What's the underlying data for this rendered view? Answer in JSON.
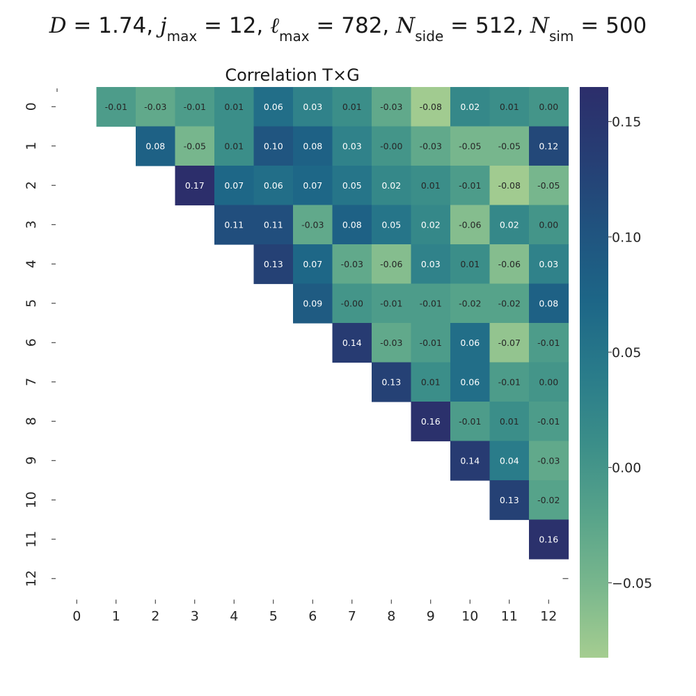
{
  "chart_data": {
    "type": "heatmap",
    "suptitle": {
      "D": "1.74",
      "j_max": "12",
      "ell_max": "782",
      "N_side": "512",
      "N_sim": "500"
    },
    "title": "Correlation T×G",
    "xlabel": "",
    "ylabel": "",
    "x_ticks": [
      "0",
      "1",
      "2",
      "3",
      "4",
      "5",
      "6",
      "7",
      "8",
      "9",
      "10",
      "11",
      "12"
    ],
    "y_ticks": [
      "0",
      "1",
      "2",
      "3",
      "4",
      "5",
      "6",
      "7",
      "8",
      "9",
      "10",
      "11",
      "12"
    ],
    "mask": "lower-triangle-including-diagonal (cells where column <= row are blank)",
    "values": [
      [
        null,
        -0.01,
        -0.03,
        -0.01,
        0.01,
        0.06,
        0.03,
        0.01,
        -0.03,
        -0.08,
        0.02,
        0.01,
        0.0
      ],
      [
        null,
        null,
        0.08,
        -0.05,
        0.01,
        0.1,
        0.08,
        0.03,
        -0.0,
        -0.03,
        -0.05,
        -0.05,
        0.12
      ],
      [
        null,
        null,
        null,
        0.17,
        0.07,
        0.06,
        0.07,
        0.05,
        0.02,
        0.01,
        -0.01,
        -0.08,
        -0.05
      ],
      [
        null,
        null,
        null,
        null,
        0.11,
        0.11,
        -0.03,
        0.08,
        0.05,
        0.02,
        -0.06,
        0.02,
        0.0
      ],
      [
        null,
        null,
        null,
        null,
        null,
        0.13,
        0.07,
        -0.03,
        -0.06,
        0.03,
        0.01,
        -0.06,
        0.03
      ],
      [
        null,
        null,
        null,
        null,
        null,
        null,
        0.09,
        -0.0,
        -0.01,
        -0.01,
        -0.02,
        -0.02,
        0.08
      ],
      [
        null,
        null,
        null,
        null,
        null,
        null,
        null,
        0.14,
        -0.03,
        -0.01,
        0.06,
        -0.07,
        -0.01
      ],
      [
        null,
        null,
        null,
        null,
        null,
        null,
        null,
        null,
        0.13,
        0.01,
        0.06,
        -0.01,
        0.0
      ],
      [
        null,
        null,
        null,
        null,
        null,
        null,
        null,
        null,
        null,
        0.16,
        -0.01,
        0.01,
        -0.01
      ],
      [
        null,
        null,
        null,
        null,
        null,
        null,
        null,
        null,
        null,
        null,
        0.14,
        0.04,
        -0.03
      ],
      [
        null,
        null,
        null,
        null,
        null,
        null,
        null,
        null,
        null,
        null,
        null,
        0.13,
        -0.02
      ],
      [
        null,
        null,
        null,
        null,
        null,
        null,
        null,
        null,
        null,
        null,
        null,
        null,
        0.16
      ],
      [
        null,
        null,
        null,
        null,
        null,
        null,
        null,
        null,
        null,
        null,
        null,
        null,
        null
      ]
    ],
    "value_labels": [
      [
        null,
        "-0.01",
        "-0.03",
        "-0.01",
        "0.01",
        "0.06",
        "0.03",
        "0.01",
        "-0.03",
        "-0.08",
        "0.02",
        "0.01",
        "0.00"
      ],
      [
        null,
        null,
        "0.08",
        "-0.05",
        "0.01",
        "0.10",
        "0.08",
        "0.03",
        "-0.00",
        "-0.03",
        "-0.05",
        "-0.05",
        "0.12"
      ],
      [
        null,
        null,
        null,
        "0.17",
        "0.07",
        "0.06",
        "0.07",
        "0.05",
        "0.02",
        "0.01",
        "-0.01",
        "-0.08",
        "-0.05"
      ],
      [
        null,
        null,
        null,
        null,
        "0.11",
        "0.11",
        "-0.03",
        "0.08",
        "0.05",
        "0.02",
        "-0.06",
        "0.02",
        "0.00"
      ],
      [
        null,
        null,
        null,
        null,
        null,
        "0.13",
        "0.07",
        "-0.03",
        "-0.06",
        "0.03",
        "0.01",
        "-0.06",
        "0.03"
      ],
      [
        null,
        null,
        null,
        null,
        null,
        null,
        "0.09",
        "-0.00",
        "-0.01",
        "-0.01",
        "-0.02",
        "-0.02",
        "0.08"
      ],
      [
        null,
        null,
        null,
        null,
        null,
        null,
        null,
        "0.14",
        "-0.03",
        "-0.01",
        "0.06",
        "-0.07",
        "-0.01"
      ],
      [
        null,
        null,
        null,
        null,
        null,
        null,
        null,
        null,
        "0.13",
        "0.01",
        "0.06",
        "-0.01",
        "0.00"
      ],
      [
        null,
        null,
        null,
        null,
        null,
        null,
        null,
        null,
        null,
        "0.16",
        "-0.01",
        "0.01",
        "-0.01"
      ],
      [
        null,
        null,
        null,
        null,
        null,
        null,
        null,
        null,
        null,
        null,
        "0.14",
        "0.04",
        "-0.03"
      ],
      [
        null,
        null,
        null,
        null,
        null,
        null,
        null,
        null,
        null,
        null,
        null,
        "0.13",
        "-0.02"
      ],
      [
        null,
        null,
        null,
        null,
        null,
        null,
        null,
        null,
        null,
        null,
        null,
        null,
        "0.16"
      ],
      [
        null,
        null,
        null,
        null,
        null,
        null,
        null,
        null,
        null,
        null,
        null,
        null,
        null
      ]
    ],
    "colorbar": {
      "colormap": "crest",
      "vmin": -0.0825,
      "vmax": 0.165,
      "ticks": [
        0.15,
        0.1,
        0.05,
        0.0,
        -0.05
      ],
      "tick_labels": [
        "0.15",
        "0.10",
        "0.05",
        "0.00",
        "−0.05"
      ],
      "stops": [
        "#a5cd90",
        "#79b78d",
        "#57a38a",
        "#3b8e89",
        "#297b8a",
        "#1d6687",
        "#20537f",
        "#263e74",
        "#2c2e6b"
      ]
    },
    "grid": false,
    "legend": "none"
  }
}
